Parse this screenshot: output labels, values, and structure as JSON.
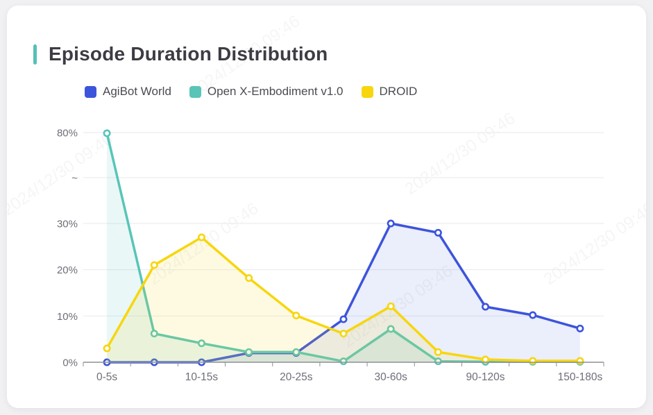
{
  "page": {
    "background": "#f1f1f4",
    "card_background": "#ffffff"
  },
  "header": {
    "title": "Episode Duration Distribution",
    "accent_color": "#56c0b6"
  },
  "legend": [
    {
      "label": "AgiBot World",
      "color": "#3c54db"
    },
    {
      "label": "Open X-Embodiment v1.0",
      "color": "#58c5b8"
    },
    {
      "label": "DROID",
      "color": "#f7d60e"
    }
  ],
  "watermark": {
    "text": "2024/12/30 09:46"
  },
  "chart_data": {
    "type": "line",
    "title": "Episode Duration Distribution",
    "xlabel": "",
    "ylabel": "",
    "grid": true,
    "legend_position": "top-left",
    "x_axis": {
      "num_positions": 11,
      "tick_labels": [
        {
          "index": 0,
          "label": "0-5s"
        },
        {
          "index": 2,
          "label": "10-15s"
        },
        {
          "index": 4,
          "label": "20-25s"
        },
        {
          "index": 6,
          "label": "30-60s"
        },
        {
          "index": 8,
          "label": "90-120s"
        },
        {
          "index": 10,
          "label": "150-180s"
        }
      ]
    },
    "y_axis": {
      "broken_axis": true,
      "break_label": "~",
      "ticks": [
        {
          "label": "0%",
          "value": 0
        },
        {
          "label": "10%",
          "value": 10
        },
        {
          "label": "20%",
          "value": 20
        },
        {
          "label": "30%",
          "value": 30
        },
        {
          "label": "~",
          "value": "break"
        },
        {
          "label": "80%",
          "value": 80
        }
      ]
    },
    "series": [
      {
        "name": "AgiBot World",
        "color": "#3c54db",
        "fill_opacity": 0.1,
        "values": [
          0,
          0,
          0,
          2,
          2,
          9.3,
          30,
          28,
          12,
          10.2,
          7.3
        ]
      },
      {
        "name": "Open X-Embodiment v1.0",
        "color": "#58c5b8",
        "fill_opacity": 0.13,
        "values": [
          79.6,
          6.2,
          4.1,
          2.2,
          2.2,
          0.2,
          7.2,
          0.2,
          0.1,
          0.1,
          0.1
        ]
      },
      {
        "name": "DROID",
        "color": "#f7d60e",
        "fill_opacity": 0.12,
        "values": [
          3,
          21,
          27,
          18.2,
          10.1,
          6.2,
          12.1,
          2.2,
          0.6,
          0.3,
          0.3
        ]
      }
    ]
  }
}
